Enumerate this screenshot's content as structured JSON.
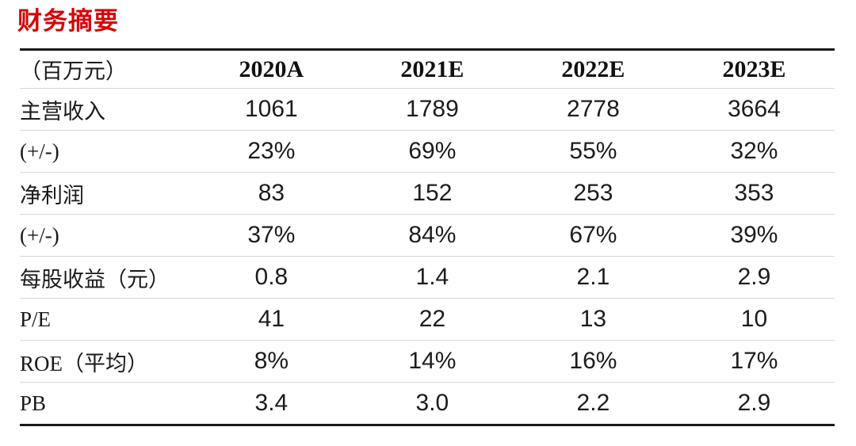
{
  "title": "财务摘要",
  "accent_color": "#d80505",
  "table": {
    "unit_header": "（百万元）",
    "columns": [
      "2020A",
      "2021E",
      "2022E",
      "2023E"
    ],
    "rows": [
      {
        "label": "主营收入",
        "values": [
          "1061",
          "1789",
          "2778",
          "3664"
        ]
      },
      {
        "label": "(+/-)",
        "values": [
          "23%",
          "69%",
          "55%",
          "32%"
        ]
      },
      {
        "label": "净利润",
        "values": [
          "83",
          "152",
          "253",
          "353"
        ]
      },
      {
        "label": "(+/-)",
        "values": [
          "37%",
          "84%",
          "67%",
          "39%"
        ]
      },
      {
        "label": "每股收益（元）",
        "values": [
          "0.8",
          "1.4",
          "2.1",
          "2.9"
        ]
      },
      {
        "label": "P/E",
        "values": [
          "41",
          "22",
          "13",
          "10"
        ]
      },
      {
        "label": "ROE（平均）",
        "values": [
          "8%",
          "14%",
          "16%",
          "17%"
        ]
      },
      {
        "label": "PB",
        "values": [
          "3.4",
          "3.0",
          "2.2",
          "2.9"
        ]
      }
    ]
  }
}
